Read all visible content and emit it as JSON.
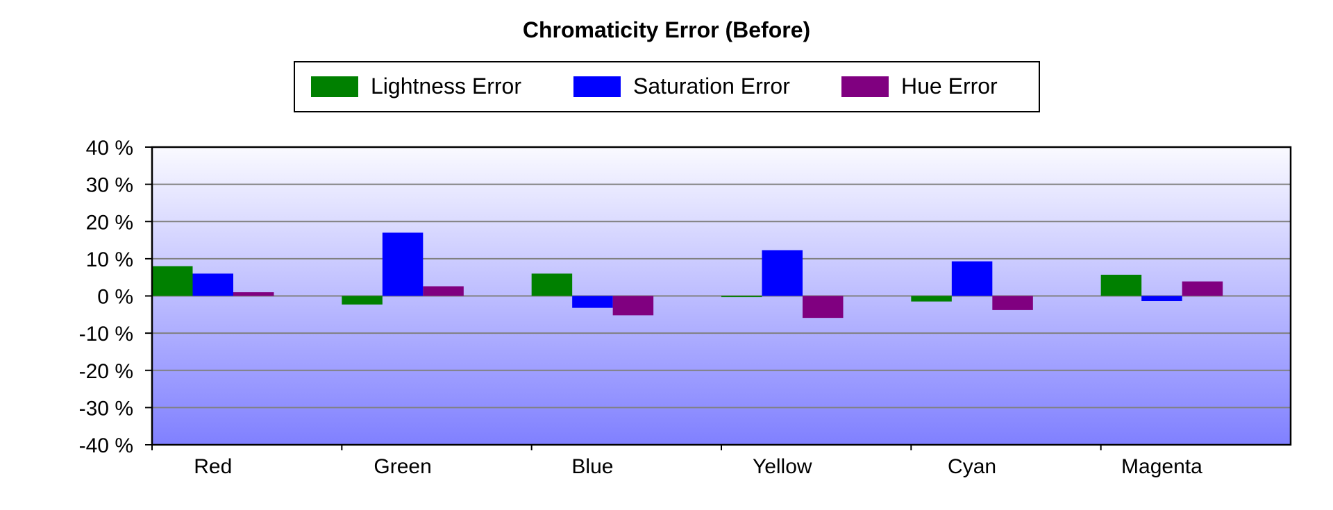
{
  "chart_data": {
    "type": "bar",
    "title": "Chromaticity Error (Before)",
    "xlabel": "",
    "ylabel": "",
    "ylim": [
      -40,
      40
    ],
    "ytick_step": 10,
    "ytick_suffix": " %",
    "grid": true,
    "legend_position": "top-center",
    "categories": [
      "Red",
      "Green",
      "Blue",
      "Yellow",
      "Cyan",
      "Magenta"
    ],
    "series": [
      {
        "name": "Lightness Error",
        "color": "#008000",
        "values": [
          8,
          -2.3,
          6,
          -0.3,
          -1.5,
          5.7
        ]
      },
      {
        "name": "Saturation Error",
        "color": "#0000ff",
        "values": [
          6,
          17,
          -3.2,
          12.3,
          9.3,
          -1.4
        ]
      },
      {
        "name": "Hue Error",
        "color": "#800080",
        "values": [
          1,
          2.6,
          -5.2,
          -5.9,
          -3.8,
          3.9
        ]
      }
    ]
  }
}
